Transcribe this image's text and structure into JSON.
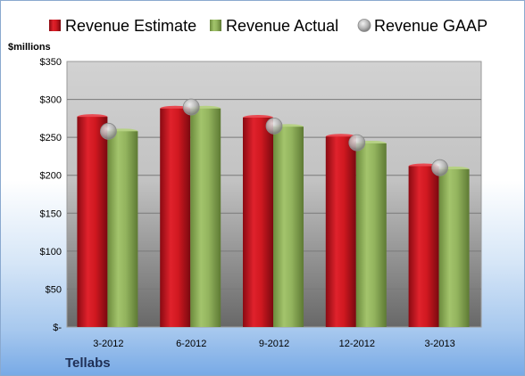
{
  "chart_data": {
    "type": "bar",
    "unit_label": "$millions",
    "categories": [
      "3-2012",
      "6-2012",
      "9-2012",
      "12-2012",
      "3-2013"
    ],
    "series": [
      {
        "name": "Revenue Estimate",
        "kind": "bar",
        "color": "#c8111d",
        "values": [
          277,
          288,
          276,
          251,
          212
        ]
      },
      {
        "name": "Revenue Actual",
        "kind": "bar",
        "color": "#8fb05a",
        "values": [
          258,
          288,
          264,
          242,
          208
        ]
      },
      {
        "name": "Revenue GAAP",
        "kind": "marker",
        "color": "#a9a9a9",
        "values": [
          258,
          290,
          265,
          243,
          210
        ]
      }
    ],
    "y_ticks": [
      "$-",
      "$50",
      "$100",
      "$150",
      "$200",
      "$250",
      "$300",
      "$350"
    ],
    "ylim": [
      0,
      350
    ],
    "grid": true,
    "legend_position": "top"
  },
  "company": "Tellabs"
}
